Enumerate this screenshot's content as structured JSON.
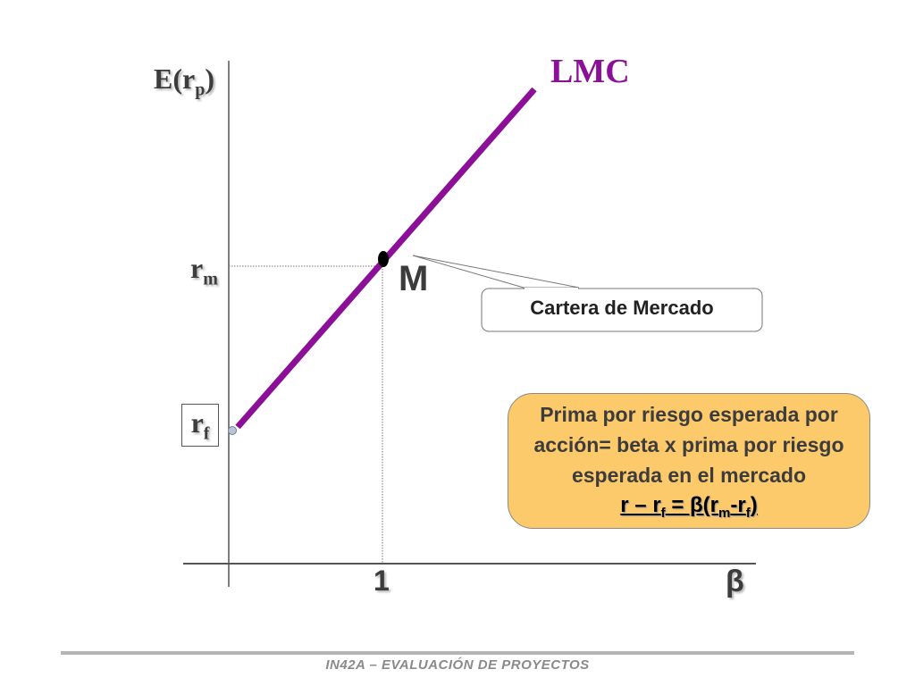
{
  "y_axis": {
    "label": "E(r",
    "label_sub": "p",
    "label_end": ")"
  },
  "x_axis": {
    "label": "β",
    "tick_one": "1"
  },
  "line": {
    "label": "LMC",
    "color": "#8b0f97"
  },
  "rm": {
    "label": "r",
    "sub": "m"
  },
  "rf": {
    "label": "r",
    "sub": "f"
  },
  "market_point": {
    "label": "M"
  },
  "callout": {
    "text": "Cartera de Mercado"
  },
  "premium_box": {
    "line1": "Prima por riesgo esperada por",
    "line2": "acción= beta x  prima por riesgo",
    "line3": "esperada en el mercado",
    "formula": {
      "left": "r – r",
      "left_sub": "f",
      "mid": " = β(r",
      "sub_m": "m",
      "dash": "-r",
      "sub_f": "f",
      "end": ")"
    },
    "color": "#fcc96b"
  },
  "footer": "IN42A – EVALUACIÓN DE PROYECTOS"
}
